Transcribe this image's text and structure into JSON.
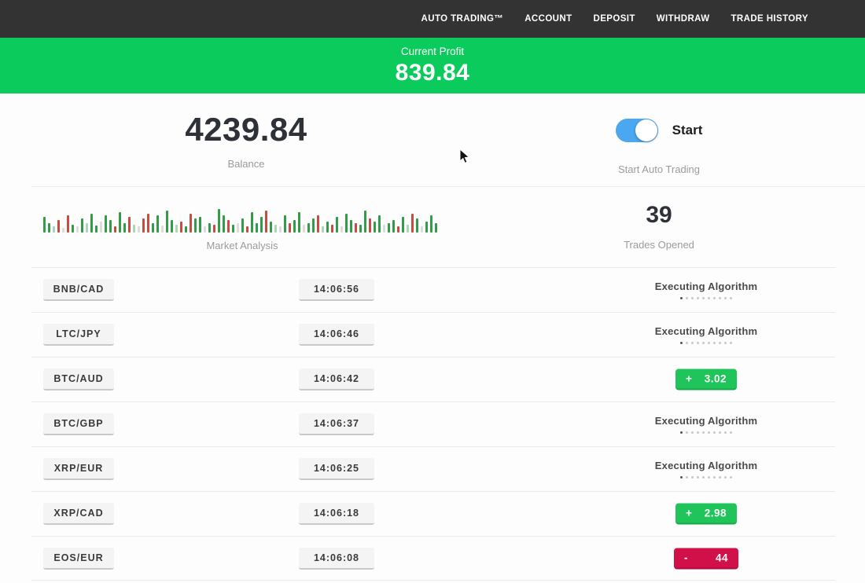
{
  "nav": {
    "items": [
      {
        "id": "auto-trading",
        "label": "AUTO TRADING™"
      },
      {
        "id": "account",
        "label": "ACCOUNT"
      },
      {
        "id": "deposit",
        "label": "DEPOSIT"
      },
      {
        "id": "withdraw",
        "label": "WITHDRAW"
      },
      {
        "id": "trade-history",
        "label": "TRADE HISTORY"
      }
    ]
  },
  "profit_banner": {
    "label": "Current Profit",
    "value": "839.84"
  },
  "summary": {
    "balance_value": "4239.84",
    "balance_label": "Balance",
    "toggle_label": "Start",
    "toggle_sublabel": "Start Auto Trading",
    "toggle_state": "on"
  },
  "market": {
    "analysis_label": "Market Analysis",
    "trades_opened_value": "39",
    "trades_opened_label": "Trades Opened"
  },
  "executing_indicator": {
    "dots_total": 10,
    "dots_active": 1
  },
  "chart_data": {
    "type": "bar",
    "title": "Market Analysis",
    "ylabel": "",
    "xlabel": "",
    "note": "decorative green/red market pulse strip, heights in px, colors g=green r=red lg=faded-green n=faded-gray",
    "bars": [
      [
        20,
        "g"
      ],
      [
        12,
        "g"
      ],
      [
        8,
        "lg"
      ],
      [
        16,
        "r"
      ],
      [
        6,
        "n"
      ],
      [
        22,
        "r"
      ],
      [
        10,
        "g"
      ],
      [
        8,
        "n"
      ],
      [
        18,
        "g"
      ],
      [
        12,
        "lg"
      ],
      [
        24,
        "g"
      ],
      [
        9,
        "g"
      ],
      [
        14,
        "n"
      ],
      [
        22,
        "g"
      ],
      [
        16,
        "g"
      ],
      [
        8,
        "r"
      ],
      [
        26,
        "g"
      ],
      [
        12,
        "g"
      ],
      [
        20,
        "r"
      ],
      [
        10,
        "lg"
      ],
      [
        8,
        "n"
      ],
      [
        18,
        "r"
      ],
      [
        24,
        "r"
      ],
      [
        12,
        "g"
      ],
      [
        22,
        "g"
      ],
      [
        9,
        "n"
      ],
      [
        28,
        "g"
      ],
      [
        16,
        "g"
      ],
      [
        10,
        "lg"
      ],
      [
        14,
        "r"
      ],
      [
        8,
        "g"
      ],
      [
        24,
        "r"
      ],
      [
        18,
        "g"
      ],
      [
        20,
        "g"
      ],
      [
        8,
        "n"
      ],
      [
        12,
        "g"
      ],
      [
        10,
        "r"
      ],
      [
        30,
        "g"
      ],
      [
        22,
        "g"
      ],
      [
        16,
        "r"
      ],
      [
        10,
        "g"
      ],
      [
        12,
        "n"
      ],
      [
        18,
        "g"
      ],
      [
        8,
        "r"
      ],
      [
        26,
        "g"
      ],
      [
        12,
        "g"
      ],
      [
        20,
        "g"
      ],
      [
        28,
        "r"
      ],
      [
        14,
        "g"
      ],
      [
        10,
        "lg"
      ],
      [
        8,
        "n"
      ],
      [
        22,
        "g"
      ],
      [
        12,
        "r"
      ],
      [
        16,
        "g"
      ],
      [
        26,
        "g"
      ],
      [
        10,
        "n"
      ],
      [
        12,
        "g"
      ],
      [
        18,
        "g"
      ],
      [
        22,
        "r"
      ],
      [
        8,
        "lg"
      ],
      [
        14,
        "g"
      ],
      [
        10,
        "r"
      ],
      [
        20,
        "g"
      ],
      [
        8,
        "n"
      ],
      [
        24,
        "g"
      ],
      [
        16,
        "g"
      ],
      [
        12,
        "r"
      ],
      [
        10,
        "g"
      ],
      [
        28,
        "g"
      ],
      [
        18,
        "r"
      ],
      [
        14,
        "g"
      ],
      [
        22,
        "g"
      ],
      [
        10,
        "n"
      ],
      [
        12,
        "g"
      ],
      [
        16,
        "g"
      ],
      [
        8,
        "r"
      ],
      [
        20,
        "g"
      ],
      [
        10,
        "lg"
      ],
      [
        24,
        "r"
      ],
      [
        18,
        "g"
      ],
      [
        8,
        "n"
      ],
      [
        14,
        "g"
      ],
      [
        22,
        "g"
      ],
      [
        12,
        "g"
      ]
    ]
  },
  "trades": [
    {
      "pair": "BNB/CAD",
      "time": "14:06:56",
      "status": "executing",
      "status_label": "Executing Algorithm"
    },
    {
      "pair": "LTC/JPY",
      "time": "14:06:46",
      "status": "executing",
      "status_label": "Executing Algorithm"
    },
    {
      "pair": "BTC/AUD",
      "time": "14:06:42",
      "status": "result",
      "sign": "+",
      "value": "3.02",
      "direction": "pos"
    },
    {
      "pair": "BTC/GBP",
      "time": "14:06:37",
      "status": "executing",
      "status_label": "Executing Algorithm"
    },
    {
      "pair": "XRP/EUR",
      "time": "14:06:25",
      "status": "executing",
      "status_label": "Executing Algorithm"
    },
    {
      "pair": "XRP/CAD",
      "time": "14:06:18",
      "status": "result",
      "sign": "+",
      "value": "2.98",
      "direction": "pos"
    },
    {
      "pair": "EOS/EUR",
      "time": "14:06:08",
      "status": "result",
      "sign": "-",
      "value": "44",
      "direction": "neg"
    }
  ],
  "colors": {
    "navbar_bg": "#333333",
    "banner_bg": "#0bcb5c",
    "profit_green": "#1fc55a",
    "loss_red": "#d1104a",
    "toggle_blue": "#4aa7f0",
    "bar_green": "#2f9e44",
    "bar_red": "#cf4a3e"
  }
}
